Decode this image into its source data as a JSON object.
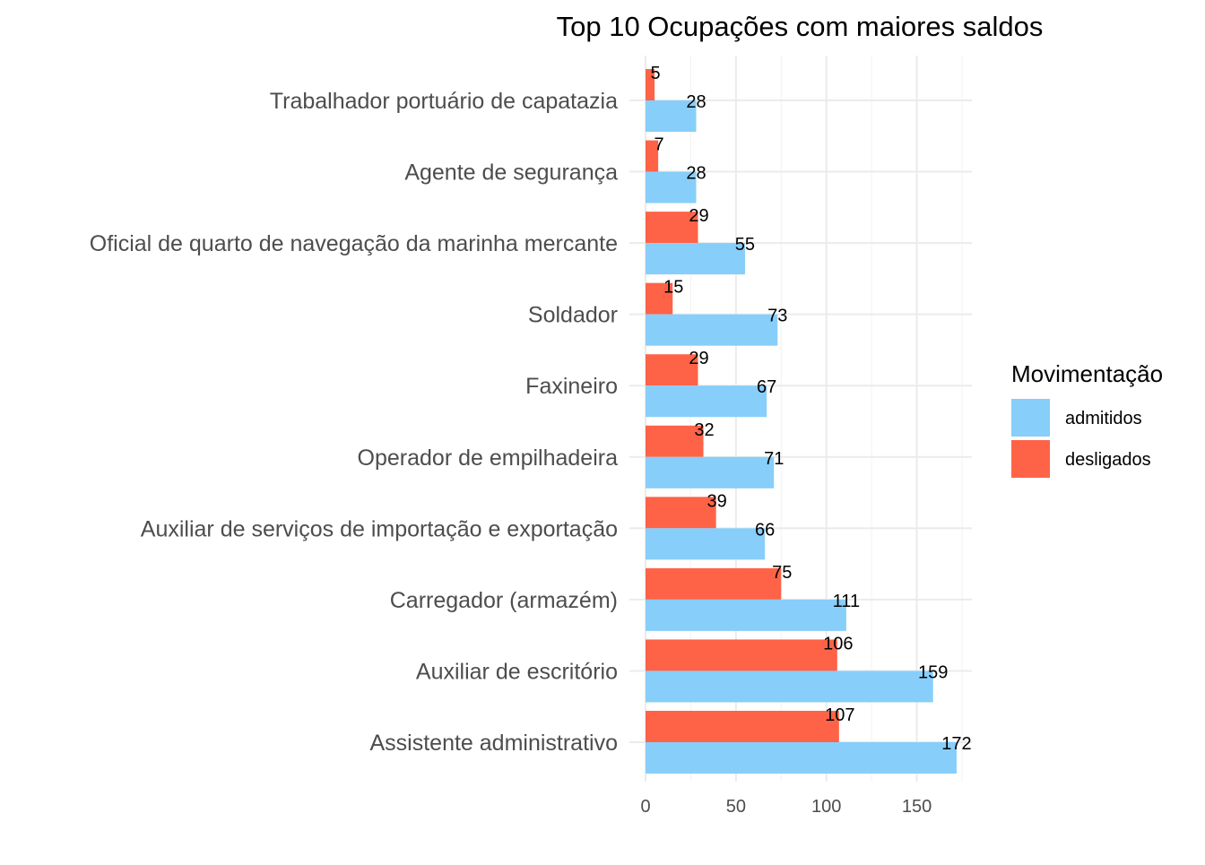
{
  "chart_data": {
    "type": "bar",
    "orientation": "horizontal",
    "title": "Top 10 Ocupações com maiores saldos",
    "xlabel": "",
    "ylabel": "",
    "xlim": [
      0,
      180
    ],
    "x_ticks": [
      0,
      50,
      100,
      150
    ],
    "grid": true,
    "legend_position": "right",
    "legend_title": "Movimentação",
    "categories": [
      "Trabalhador portuário de capatazia",
      "Agente de segurança",
      "Oficial de quarto de navegação da marinha mercante",
      "Soldador",
      "Faxineiro",
      "Operador de empilhadeira",
      "Auxiliar de serviços de importação e exportação",
      "Carregador (armazém)",
      "Auxiliar de escritório",
      "Assistente administrativo"
    ],
    "series": [
      {
        "name": "admitidos",
        "color": "#87CEFA",
        "values": [
          28,
          28,
          55,
          73,
          67,
          71,
          66,
          111,
          159,
          172
        ]
      },
      {
        "name": "desligados",
        "color": "#FF6347",
        "values": [
          5,
          7,
          29,
          15,
          29,
          32,
          39,
          75,
          106,
          107
        ]
      }
    ]
  }
}
